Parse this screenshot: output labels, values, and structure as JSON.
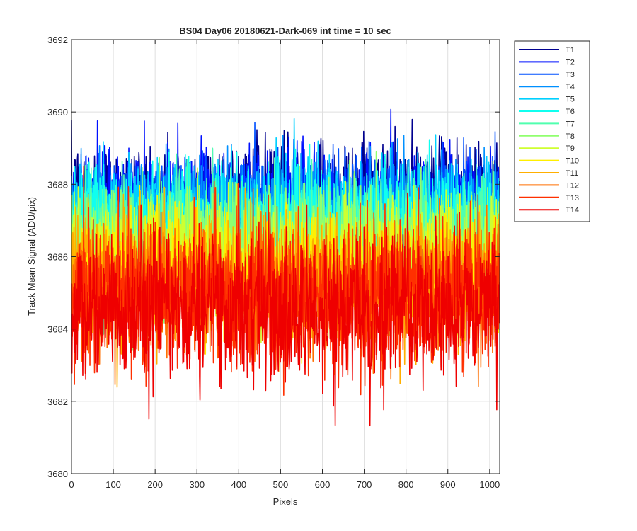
{
  "chart_data": {
    "type": "line",
    "title": "BS04 Day06 20180621-Dark-069 int time = 10 sec",
    "xlabel": "Pixels",
    "ylabel": "Track Mean Signal (ADU/pix)",
    "xlim": [
      0,
      1024
    ],
    "ylim": [
      3680,
      3692
    ],
    "xticks": [
      0,
      100,
      200,
      300,
      400,
      500,
      600,
      700,
      800,
      900,
      1000
    ],
    "yticks": [
      3680,
      3682,
      3684,
      3686,
      3688,
      3690,
      3692
    ],
    "grid": true,
    "legend_position": "outside-top-right",
    "n_points_per_series": 1024,
    "series": [
      {
        "name": "T1",
        "color": "#00008f",
        "mean": 3687.7,
        "std": 0.75
      },
      {
        "name": "T2",
        "color": "#0010ff",
        "mean": 3687.5,
        "std": 0.75
      },
      {
        "name": "T3",
        "color": "#0050ff",
        "mean": 3687.3,
        "std": 0.75
      },
      {
        "name": "T4",
        "color": "#0090ff",
        "mean": 3687.2,
        "std": 0.75
      },
      {
        "name": "T5",
        "color": "#00d0ff",
        "mean": 3687.1,
        "std": 0.75
      },
      {
        "name": "T6",
        "color": "#10ffef",
        "mean": 3686.9,
        "std": 0.78
      },
      {
        "name": "T7",
        "color": "#50ffaf",
        "mean": 3686.6,
        "std": 0.8
      },
      {
        "name": "T8",
        "color": "#90ff6f",
        "mean": 3686.3,
        "std": 0.8
      },
      {
        "name": "T9",
        "color": "#cfff30",
        "mean": 3686.0,
        "std": 0.8
      },
      {
        "name": "T10",
        "color": "#ffef00",
        "mean": 3685.7,
        "std": 0.82
      },
      {
        "name": "T11",
        "color": "#ffaf00",
        "mean": 3685.4,
        "std": 0.85
      },
      {
        "name": "T12",
        "color": "#ff6f00",
        "mean": 3685.1,
        "std": 0.9
      },
      {
        "name": "T13",
        "color": "#ff3000",
        "mean": 3684.9,
        "std": 0.95
      },
      {
        "name": "T14",
        "color": "#ef0000",
        "mean": 3684.6,
        "std": 1.0
      }
    ]
  }
}
